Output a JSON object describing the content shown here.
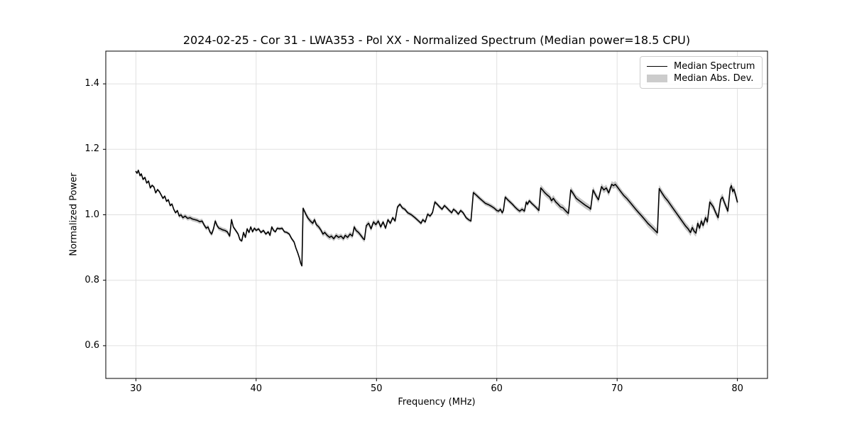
{
  "chart_data": {
    "type": "line",
    "title": "2024-02-25 - Cor 31 - LWA353 - Pol XX - Normalized Spectrum (Median power=18.5 CPU)",
    "xlabel": "Frequency (MHz)",
    "ylabel": "Normalized Power",
    "xlim": [
      27.5,
      82.5
    ],
    "ylim": [
      0.5,
      1.5
    ],
    "x_ticks": [
      30,
      40,
      50,
      60,
      70,
      80
    ],
    "y_ticks": [
      0.6,
      0.8,
      1.0,
      1.2,
      1.4
    ],
    "grid": true,
    "legend_position": "upper right",
    "style": {
      "grid_color": "#e0e0e0",
      "spine_color": "#000000",
      "tick_color": "#000000",
      "text_color": "#000000",
      "legend_border_color": "#cccccc",
      "legend_patch_color": "#cccccc",
      "background": "#ffffff"
    },
    "series": [
      {
        "name": "Median Spectrum",
        "type": "line",
        "color": "#000000",
        "points": [
          [
            30,
            1.132
          ],
          [
            30.1,
            1.127
          ],
          [
            30.2,
            1.136
          ],
          [
            30.35,
            1.119
          ],
          [
            30.45,
            1.125
          ],
          [
            30.6,
            1.108
          ],
          [
            30.75,
            1.114
          ],
          [
            30.9,
            1.097
          ],
          [
            31.05,
            1.103
          ],
          [
            31.2,
            1.082
          ],
          [
            31.35,
            1.09
          ],
          [
            31.5,
            1.085
          ],
          [
            31.65,
            1.067
          ],
          [
            31.8,
            1.077
          ],
          [
            31.95,
            1.071
          ],
          [
            32.1,
            1.061
          ],
          [
            32.25,
            1.05
          ],
          [
            32.4,
            1.057
          ],
          [
            32.55,
            1.041
          ],
          [
            32.7,
            1.046
          ],
          [
            32.85,
            1.028
          ],
          [
            33,
            1.033
          ],
          [
            33.15,
            1.017
          ],
          [
            33.3,
            1.006
          ],
          [
            33.45,
            1.013
          ],
          [
            33.6,
            0.996
          ],
          [
            33.75,
            1.0
          ],
          [
            33.9,
            0.991
          ],
          [
            34.1,
            0.996
          ],
          [
            34.3,
            0.989
          ],
          [
            34.5,
            0.991
          ],
          [
            34.7,
            0.987
          ],
          [
            34.9,
            0.985
          ],
          [
            35.1,
            0.983
          ],
          [
            35.3,
            0.979
          ],
          [
            35.5,
            0.981
          ],
          [
            35.7,
            0.967
          ],
          [
            35.85,
            0.959
          ],
          [
            36,
            0.963
          ],
          [
            36.15,
            0.948
          ],
          [
            36.3,
            0.941
          ],
          [
            36.45,
            0.957
          ],
          [
            36.6,
            0.981
          ],
          [
            36.75,
            0.967
          ],
          [
            36.9,
            0.959
          ],
          [
            37.05,
            0.957
          ],
          [
            37.2,
            0.954
          ],
          [
            37.4,
            0.952
          ],
          [
            37.6,
            0.948
          ],
          [
            37.8,
            0.935
          ],
          [
            37.95,
            0.985
          ],
          [
            38.1,
            0.963
          ],
          [
            38.3,
            0.952
          ],
          [
            38.5,
            0.941
          ],
          [
            38.65,
            0.924
          ],
          [
            38.8,
            0.92
          ],
          [
            38.95,
            0.946
          ],
          [
            39.1,
            0.931
          ],
          [
            39.25,
            0.957
          ],
          [
            39.4,
            0.946
          ],
          [
            39.55,
            0.963
          ],
          [
            39.7,
            0.948
          ],
          [
            39.85,
            0.959
          ],
          [
            40,
            0.952
          ],
          [
            40.2,
            0.957
          ],
          [
            40.4,
            0.946
          ],
          [
            40.6,
            0.952
          ],
          [
            40.8,
            0.941
          ],
          [
            41,
            0.948
          ],
          [
            41.15,
            0.937
          ],
          [
            41.3,
            0.963
          ],
          [
            41.45,
            0.952
          ],
          [
            41.6,
            0.948
          ],
          [
            41.75,
            0.959
          ],
          [
            41.95,
            0.957
          ],
          [
            42.15,
            0.959
          ],
          [
            42.35,
            0.948
          ],
          [
            42.55,
            0.946
          ],
          [
            42.75,
            0.941
          ],
          [
            42.95,
            0.927
          ],
          [
            43.15,
            0.917
          ],
          [
            43.3,
            0.899
          ],
          [
            43.45,
            0.884
          ],
          [
            43.6,
            0.867
          ],
          [
            43.7,
            0.852
          ],
          [
            43.8,
            0.844
          ],
          [
            43.9,
            1.02
          ],
          [
            44.1,
            1.004
          ],
          [
            44.3,
            0.99
          ],
          [
            44.5,
            0.981
          ],
          [
            44.7,
            0.974
          ],
          [
            44.85,
            0.985
          ],
          [
            45,
            0.97
          ],
          [
            45.2,
            0.963
          ],
          [
            45.4,
            0.952
          ],
          [
            45.55,
            0.941
          ],
          [
            45.7,
            0.946
          ],
          [
            45.9,
            0.937
          ],
          [
            46.1,
            0.931
          ],
          [
            46.25,
            0.935
          ],
          [
            46.45,
            0.927
          ],
          [
            46.65,
            0.937
          ],
          [
            46.85,
            0.931
          ],
          [
            47.05,
            0.935
          ],
          [
            47.25,
            0.927
          ],
          [
            47.4,
            0.937
          ],
          [
            47.6,
            0.931
          ],
          [
            47.8,
            0.941
          ],
          [
            48,
            0.935
          ],
          [
            48.15,
            0.963
          ],
          [
            48.3,
            0.952
          ],
          [
            48.5,
            0.946
          ],
          [
            48.7,
            0.937
          ],
          [
            48.9,
            0.927
          ],
          [
            49,
            0.924
          ],
          [
            49.15,
            0.967
          ],
          [
            49.35,
            0.974
          ],
          [
            49.55,
            0.957
          ],
          [
            49.75,
            0.978
          ],
          [
            49.95,
            0.97
          ],
          [
            50.15,
            0.981
          ],
          [
            50.35,
            0.963
          ],
          [
            50.55,
            0.978
          ],
          [
            50.75,
            0.959
          ],
          [
            50.95,
            0.985
          ],
          [
            51.15,
            0.974
          ],
          [
            51.35,
            0.991
          ],
          [
            51.55,
            0.981
          ],
          [
            51.75,
            1.024
          ],
          [
            51.95,
            1.032
          ],
          [
            52.15,
            1.021
          ],
          [
            52.35,
            1.017
          ],
          [
            52.6,
            1.006
          ],
          [
            52.9,
            1.0
          ],
          [
            53.2,
            0.991
          ],
          [
            53.5,
            0.981
          ],
          [
            53.7,
            0.974
          ],
          [
            53.85,
            0.985
          ],
          [
            54.05,
            0.978
          ],
          [
            54.25,
            1.002
          ],
          [
            54.45,
            0.996
          ],
          [
            54.65,
            1.006
          ],
          [
            54.85,
            1.039
          ],
          [
            55.05,
            1.032
          ],
          [
            55.25,
            1.024
          ],
          [
            55.45,
            1.017
          ],
          [
            55.65,
            1.028
          ],
          [
            55.85,
            1.021
          ],
          [
            56.05,
            1.013
          ],
          [
            56.25,
            1.006
          ],
          [
            56.4,
            1.017
          ],
          [
            56.6,
            1.011
          ],
          [
            56.8,
            1.002
          ],
          [
            57,
            1.013
          ],
          [
            57.2,
            1.006
          ],
          [
            57.45,
            0.991
          ],
          [
            57.65,
            0.985
          ],
          [
            57.85,
            0.981
          ],
          [
            58.05,
            1.068
          ],
          [
            58.3,
            1.06
          ],
          [
            58.55,
            1.051
          ],
          [
            58.8,
            1.043
          ],
          [
            59.05,
            1.035
          ],
          [
            59.3,
            1.031
          ],
          [
            59.55,
            1.026
          ],
          [
            59.8,
            1.02
          ],
          [
            60,
            1.013
          ],
          [
            60.15,
            1.011
          ],
          [
            60.3,
            1.017
          ],
          [
            60.45,
            1.006
          ],
          [
            60.55,
            1.013
          ],
          [
            60.7,
            1.054
          ],
          [
            60.9,
            1.046
          ],
          [
            61.1,
            1.039
          ],
          [
            61.3,
            1.032
          ],
          [
            61.5,
            1.024
          ],
          [
            61.7,
            1.017
          ],
          [
            61.9,
            1.011
          ],
          [
            62.1,
            1.017
          ],
          [
            62.3,
            1.011
          ],
          [
            62.45,
            1.039
          ],
          [
            62.55,
            1.032
          ],
          [
            62.7,
            1.043
          ],
          [
            62.9,
            1.035
          ],
          [
            63.1,
            1.028
          ],
          [
            63.3,
            1.021
          ],
          [
            63.5,
            1.013
          ],
          [
            63.65,
            1.082
          ],
          [
            63.8,
            1.076
          ],
          [
            64,
            1.067
          ],
          [
            64.2,
            1.06
          ],
          [
            64.4,
            1.054
          ],
          [
            64.55,
            1.043
          ],
          [
            64.7,
            1.05
          ],
          [
            64.9,
            1.039
          ],
          [
            65.1,
            1.032
          ],
          [
            65.3,
            1.024
          ],
          [
            65.5,
            1.021
          ],
          [
            65.7,
            1.013
          ],
          [
            65.95,
            1.004
          ],
          [
            66.15,
            1.076
          ],
          [
            66.35,
            1.065
          ],
          [
            66.6,
            1.05
          ],
          [
            67,
            1.039
          ],
          [
            67.4,
            1.028
          ],
          [
            67.7,
            1.021
          ],
          [
            67.8,
            1.017
          ],
          [
            68,
            1.076
          ],
          [
            68.25,
            1.058
          ],
          [
            68.45,
            1.046
          ],
          [
            68.7,
            1.086
          ],
          [
            68.9,
            1.076
          ],
          [
            69.1,
            1.082
          ],
          [
            69.3,
            1.067
          ],
          [
            69.55,
            1.093
          ],
          [
            69.7,
            1.089
          ],
          [
            69.85,
            1.093
          ],
          [
            70,
            1.086
          ],
          [
            70.3,
            1.071
          ],
          [
            70.55,
            1.059
          ],
          [
            70.8,
            1.05
          ],
          [
            71.05,
            1.039
          ],
          [
            71.3,
            1.028
          ],
          [
            71.55,
            1.017
          ],
          [
            71.8,
            1.006
          ],
          [
            72.05,
            0.996
          ],
          [
            72.3,
            0.985
          ],
          [
            72.55,
            0.974
          ],
          [
            72.8,
            0.965
          ],
          [
            73.05,
            0.956
          ],
          [
            73.35,
            0.945
          ],
          [
            73.5,
            1.08
          ],
          [
            73.7,
            1.068
          ],
          [
            73.95,
            1.054
          ],
          [
            74.2,
            1.043
          ],
          [
            74.45,
            1.03
          ],
          [
            74.7,
            1.017
          ],
          [
            74.95,
            1.004
          ],
          [
            75.2,
            0.991
          ],
          [
            75.45,
            0.978
          ],
          [
            75.7,
            0.965
          ],
          [
            75.9,
            0.957
          ],
          [
            76.1,
            0.946
          ],
          [
            76.25,
            0.961
          ],
          [
            76.4,
            0.95
          ],
          [
            76.55,
            0.944
          ],
          [
            76.7,
            0.974
          ],
          [
            76.85,
            0.959
          ],
          [
            77,
            0.981
          ],
          [
            77.15,
            0.967
          ],
          [
            77.35,
            0.991
          ],
          [
            77.5,
            0.978
          ],
          [
            77.7,
            1.039
          ],
          [
            78,
            1.024
          ],
          [
            78.2,
            1.006
          ],
          [
            78.4,
            0.991
          ],
          [
            78.6,
            1.046
          ],
          [
            78.75,
            1.054
          ],
          [
            78.9,
            1.039
          ],
          [
            79.1,
            1.021
          ],
          [
            79.2,
            1.011
          ],
          [
            79.4,
            1.082
          ],
          [
            79.5,
            1.089
          ],
          [
            79.6,
            1.071
          ],
          [
            79.7,
            1.078
          ],
          [
            79.8,
            1.067
          ],
          [
            80,
            1.039
          ]
        ]
      },
      {
        "name": "Median Abs. Dev.",
        "type": "band_around_line",
        "color": "#8c8c8c",
        "opacity": 0.5,
        "halfwidth_default": 0.004,
        "halfwidth_segments": [
          [
            33.5,
            38,
            0.007
          ],
          [
            38,
            44,
            0.005
          ],
          [
            44,
            50.5,
            0.008
          ],
          [
            50.5,
            58,
            0.006
          ],
          [
            58,
            63.5,
            0.007
          ],
          [
            63.5,
            72.5,
            0.01
          ],
          [
            72.5,
            80.1,
            0.011
          ]
        ]
      }
    ]
  }
}
